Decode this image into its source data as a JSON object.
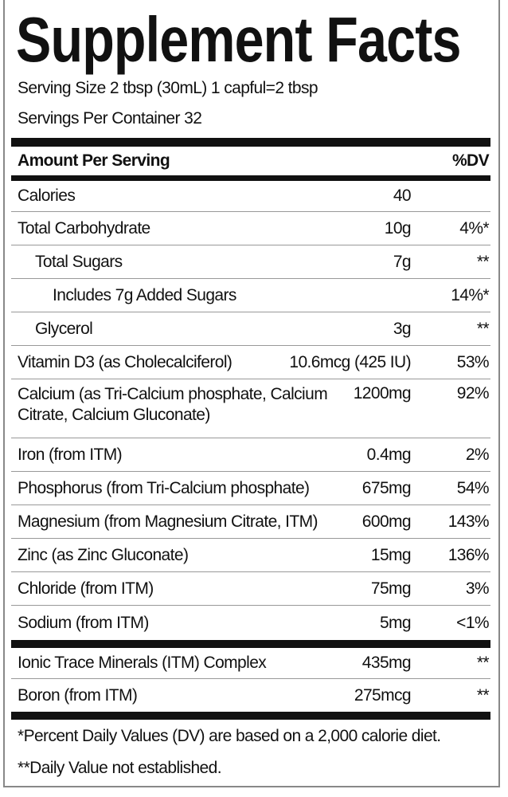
{
  "title": "Supplement Facts",
  "serving_size": "Serving Size 2 tbsp (30mL) 1 capful=2 tbsp",
  "servings_per_container": "Servings Per Container 32",
  "header": {
    "amount_per_serving": "Amount Per Serving",
    "dv": "%DV"
  },
  "rows": [
    {
      "name": "Calories",
      "amount": "40",
      "dv": ""
    },
    {
      "name": "Total Carbohydrate",
      "amount": "10g",
      "dv": "4%*"
    },
    {
      "name": "Total Sugars",
      "amount": "7g",
      "dv": "**"
    },
    {
      "name": "Includes 7g Added Sugars",
      "amount": "",
      "dv": "14%*"
    },
    {
      "name": "Glycerol",
      "amount": "3g",
      "dv": "**"
    },
    {
      "name": "Vitamin D3 (as Cholecalciferol)",
      "amount": "10.6mcg (425 IU)",
      "dv": "53%"
    },
    {
      "name": "Calcium (as Tri-Calcium phosphate, Calcium Citrate, Calcium Gluconate)",
      "name_line1": "Calcium (as Tri-Calcium phosphate, Calcium",
      "name_line2": "Citrate, Calcium Gluconate)",
      "amount": "1200mg",
      "dv": "92%"
    },
    {
      "name": "Iron (from ITM)",
      "amount": "0.4mg",
      "dv": "2%"
    },
    {
      "name": "Phosphorus (from Tri-Calcium phosphate)",
      "amount": "675mg",
      "dv": "54%"
    },
    {
      "name": "Magnesium (from Magnesium Citrate, ITM)",
      "amount": "600mg",
      "dv": "143%"
    },
    {
      "name": "Zinc (as Zinc Gluconate)",
      "amount": "15mg",
      "dv": "136%"
    },
    {
      "name": "Chloride (from ITM)",
      "amount": "75mg",
      "dv": "3%"
    },
    {
      "name": "Sodium (from ITM)",
      "amount": "5mg",
      "dv": "<1%"
    }
  ],
  "other_rows": [
    {
      "name": "Ionic Trace Minerals (ITM) Complex",
      "amount": "435mg",
      "dv": "**"
    },
    {
      "name": "Boron (from ITM)",
      "amount": "275mcg",
      "dv": "**"
    }
  ],
  "footnotes": [
    "*Percent Daily Values (DV) are based on a 2,000 calorie diet.",
    "**Daily Value not established."
  ]
}
